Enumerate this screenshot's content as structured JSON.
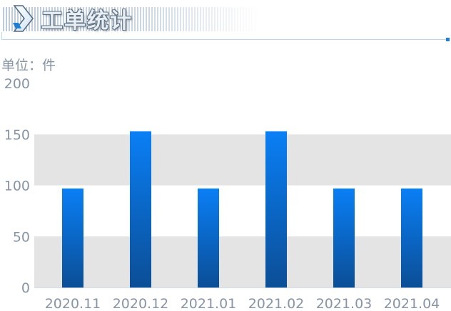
{
  "header": {
    "title": "工单统计",
    "icon": "chevron-right-icon"
  },
  "unit_label": "单位：件",
  "colors": {
    "bar_top": "#0a7ff5",
    "bar_bottom": "#0b4e96",
    "band": "#e4e4e4",
    "axis_text": "#8795a6",
    "accent": "#1f7fd6"
  },
  "chart_data": {
    "type": "bar",
    "categories": [
      "2020.11",
      "2020.12",
      "2021.01",
      "2021.02",
      "2021.03",
      "2021.04"
    ],
    "values": [
      97,
      153,
      97,
      153,
      97,
      97
    ],
    "yticks": [
      0,
      50,
      100,
      150,
      200
    ],
    "ylim": [
      0,
      200
    ],
    "grid": "alternating bands",
    "title": "",
    "xlabel": "",
    "ylabel": ""
  }
}
